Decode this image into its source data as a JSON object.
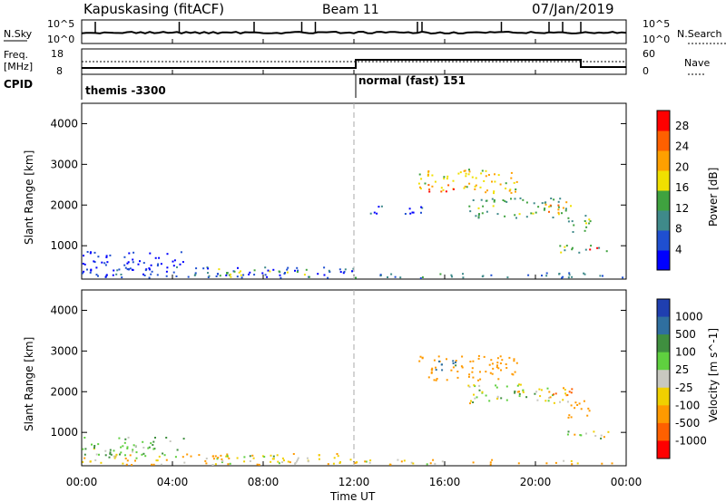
{
  "header": {
    "station": "Kapuskasing (fitACF)",
    "beam": "Beam 11",
    "date": "07/Jan/2019"
  },
  "noise_panel": {
    "left_label": "N.Sky",
    "right_label": "N.Search",
    "left_ticks": [
      "10^5",
      "10^0"
    ],
    "right_ticks": [
      "10^5",
      "10^0"
    ]
  },
  "freq_panel": {
    "left_label_1": "Freq.",
    "left_label_2": "[MHz]",
    "right_label": "Nave",
    "left_ticks": [
      "18",
      "8"
    ],
    "right_ticks": [
      "60",
      "0"
    ]
  },
  "cpid": {
    "label": "CPID",
    "segments": [
      "themis -3300",
      "normal (fast) 151"
    ],
    "change_hour": 12
  },
  "colors": {
    "power": [
      "#0000ff",
      "#1f4fd0",
      "#3f8a8a",
      "#3fa23f",
      "#f0e000",
      "#ffa000",
      "#ff6000",
      "#ff0000"
    ],
    "velocity": [
      "#1f3fb0",
      "#2f6f9f",
      "#3f8f3f",
      "#5fd03f",
      "#c8c8c0",
      "#f0d000",
      "#ff9a00",
      "#ff6000",
      "#ff0000"
    ]
  },
  "chart_data": [
    {
      "type": "heatmap",
      "panel": "power",
      "ylabel": "Slant Range [km]",
      "ylim": [
        180,
        4500
      ],
      "xlim": [
        0,
        24
      ],
      "yticks": [
        "1000",
        "2000",
        "3000",
        "4000"
      ],
      "colorbar_label": "Power [dB]",
      "colorbar_ticks": [
        "4",
        "8",
        "12",
        "16",
        "20",
        "24",
        "28"
      ],
      "colorbar_range": [
        0,
        31
      ],
      "regions": [
        {
          "t0": 0.0,
          "t1": 4.5,
          "r0": 400,
          "r1": 900,
          "level": 3
        },
        {
          "t0": 0.0,
          "t1": 12.0,
          "r0": 200,
          "r1": 500,
          "level": 6
        },
        {
          "t0": 6.0,
          "t1": 10.0,
          "r0": 250,
          "r1": 450,
          "level": 16
        },
        {
          "t0": 12.0,
          "t1": 24.0,
          "r0": 200,
          "r1": 350,
          "level": 9
        },
        {
          "t0": 14.8,
          "t1": 19.2,
          "r0": 2300,
          "r1": 2900,
          "level": 19
        },
        {
          "t0": 15.2,
          "t1": 16.4,
          "r0": 2350,
          "r1": 2600,
          "level": 28
        },
        {
          "t0": 17.0,
          "t1": 21.4,
          "r0": 1700,
          "r1": 2200,
          "level": 13
        },
        {
          "t0": 20.4,
          "t1": 21.6,
          "r0": 1800,
          "r1": 2100,
          "level": 22
        },
        {
          "t0": 21.4,
          "t1": 22.4,
          "r0": 1300,
          "r1": 1800,
          "level": 13
        },
        {
          "t0": 21.0,
          "t1": 23.3,
          "r0": 850,
          "r1": 1050,
          "level": 14
        },
        {
          "t0": 22.3,
          "t1": 22.9,
          "r0": 880,
          "r1": 1020,
          "level": 28
        },
        {
          "t0": 12.5,
          "t1": 15.0,
          "r0": 1800,
          "r1": 2000,
          "level": 6
        }
      ]
    },
    {
      "type": "heatmap",
      "panel": "velocity",
      "ylabel": "Slant Range [km]",
      "ylim": [
        180,
        4500
      ],
      "xlim": [
        0,
        24
      ],
      "yticks": [
        "1000",
        "2000",
        "3000",
        "4000"
      ],
      "colorbar_label": "Velocity [m s^-1]",
      "colorbar_ticks": [
        "1000",
        "500",
        "100",
        "25",
        "-25",
        "-100",
        "-500",
        "-1000"
      ],
      "regions": [
        {
          "t0": 0.0,
          "t1": 4.5,
          "r0": 400,
          "r1": 900,
          "vel": 60
        },
        {
          "t0": 0.0,
          "t1": 12.0,
          "r0": 200,
          "r1": 500,
          "vel": -60
        },
        {
          "t0": 6.0,
          "t1": 10.0,
          "r0": 250,
          "r1": 450,
          "vel": 0
        },
        {
          "t0": 12.0,
          "t1": 24.0,
          "r0": 200,
          "r1": 350,
          "vel": -60
        },
        {
          "t0": 14.8,
          "t1": 19.2,
          "r0": 2300,
          "r1": 2900,
          "vel": -150
        },
        {
          "t0": 17.0,
          "t1": 21.4,
          "r0": 1700,
          "r1": 2200,
          "vel": 0
        },
        {
          "t0": 20.4,
          "t1": 21.6,
          "r0": 1800,
          "r1": 2100,
          "vel": -250
        },
        {
          "t0": 21.4,
          "t1": 22.4,
          "r0": 1300,
          "r1": 1800,
          "vel": -150
        },
        {
          "t0": 21.0,
          "t1": 23.3,
          "r0": 850,
          "r1": 1050,
          "vel": 0
        },
        {
          "t0": 15.5,
          "t1": 17.0,
          "r0": 2550,
          "r1": 2800,
          "vel": 300
        }
      ]
    }
  ],
  "xaxis": {
    "label": "Time UT",
    "ticks": [
      "00:00",
      "04:00",
      "08:00",
      "12:00",
      "16:00",
      "20:00",
      "00:00"
    ]
  }
}
